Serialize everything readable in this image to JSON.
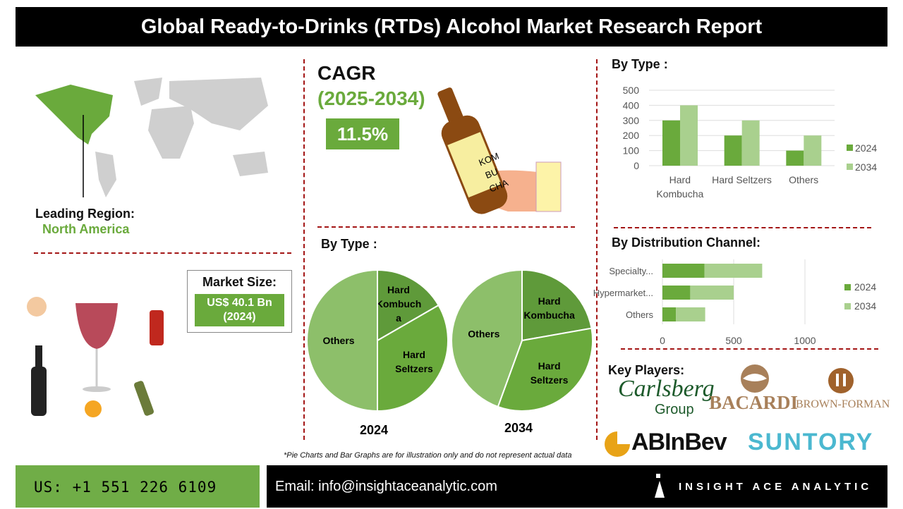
{
  "title": "Global Ready-to-Drinks (RTDs) Alcohol Market Research Report",
  "region": {
    "label": "Leading Region:",
    "value": "North America"
  },
  "cagr": {
    "label": "CAGR",
    "period": "(2025-2034)",
    "value": "11.5%",
    "bottle_text": [
      "KOM",
      "BU",
      "CHA"
    ]
  },
  "market_size": {
    "label": "Market Size:",
    "value": "US$ 40.1 Bn",
    "year": "(2024)"
  },
  "sections": {
    "by_type_bar": "By Type :",
    "by_type_pie": "By Type :",
    "by_channel": "By Distribution Channel:",
    "key_players": "Key Players:"
  },
  "colors": {
    "dark_green": "#5f9a3a",
    "mid_green": "#6aaa3c",
    "light_green": "#a9d08e",
    "pie_light": "#8dbf6a",
    "divider": "#a31515"
  },
  "chart_data": [
    {
      "type": "bar",
      "title": "By Type :",
      "categories": [
        "Hard Kombucha",
        "Hard Seltzers",
        "Others"
      ],
      "category_labels": [
        [
          "Hard",
          "Kombucha"
        ],
        [
          "Hard Seltzers"
        ],
        [
          "Others"
        ]
      ],
      "series": [
        {
          "name": "2024",
          "values": [
            300,
            200,
            100
          ]
        },
        {
          "name": "2034",
          "values": [
            400,
            300,
            200
          ]
        }
      ],
      "ylim": [
        0,
        500
      ],
      "yticks": [
        0,
        100,
        200,
        300,
        400,
        500
      ],
      "grid": true,
      "legend": "right"
    },
    {
      "type": "pie",
      "title": "2024",
      "slices": [
        {
          "label": "Hard Kombucha",
          "display": [
            "Hard",
            "Kombuch",
            "a"
          ],
          "value": 100
        },
        {
          "label": "Hard Seltzers",
          "display": [
            "Hard",
            "Seltzers"
          ],
          "value": 200
        },
        {
          "label": "Others",
          "display": [
            "Others"
          ],
          "value": 300
        }
      ]
    },
    {
      "type": "pie",
      "title": "2034",
      "slices": [
        {
          "label": "Hard Kombucha",
          "display": [
            "Hard",
            "Kombucha"
          ],
          "value": 200
        },
        {
          "label": "Hard Seltzers",
          "display": [
            "Hard",
            "Seltzers"
          ],
          "value": 300
        },
        {
          "label": "Others",
          "display": [
            "Others"
          ],
          "value": 400
        }
      ]
    },
    {
      "type": "bar",
      "orientation": "horizontal",
      "stacked": true,
      "title": "By Distribution Channel:",
      "categories": [
        "Specialty...",
        "Hypermarket...",
        "Others"
      ],
      "series": [
        {
          "name": "2024",
          "values": [
            295,
            195,
            95
          ]
        },
        {
          "name": "2034",
          "values": [
            405,
            305,
            205
          ]
        }
      ],
      "xlim": [
        0,
        1300
      ],
      "xticks": [
        0,
        500,
        1000
      ],
      "grid": true,
      "legend": "right"
    }
  ],
  "players": [
    "Carlsberg",
    "Group",
    "BACARDI",
    "BROWN-FORMAN",
    "ABInBev",
    "SUNTORY"
  ],
  "disclaimer": "*Pie Charts and Bar Graphs are for illustration only and do not represent actual data",
  "footer": {
    "phone": "US: +1 551 226 6109",
    "email": "Email: info@insightaceanalytic.com",
    "brand": "INSIGHT ACE ANALYTIC"
  }
}
